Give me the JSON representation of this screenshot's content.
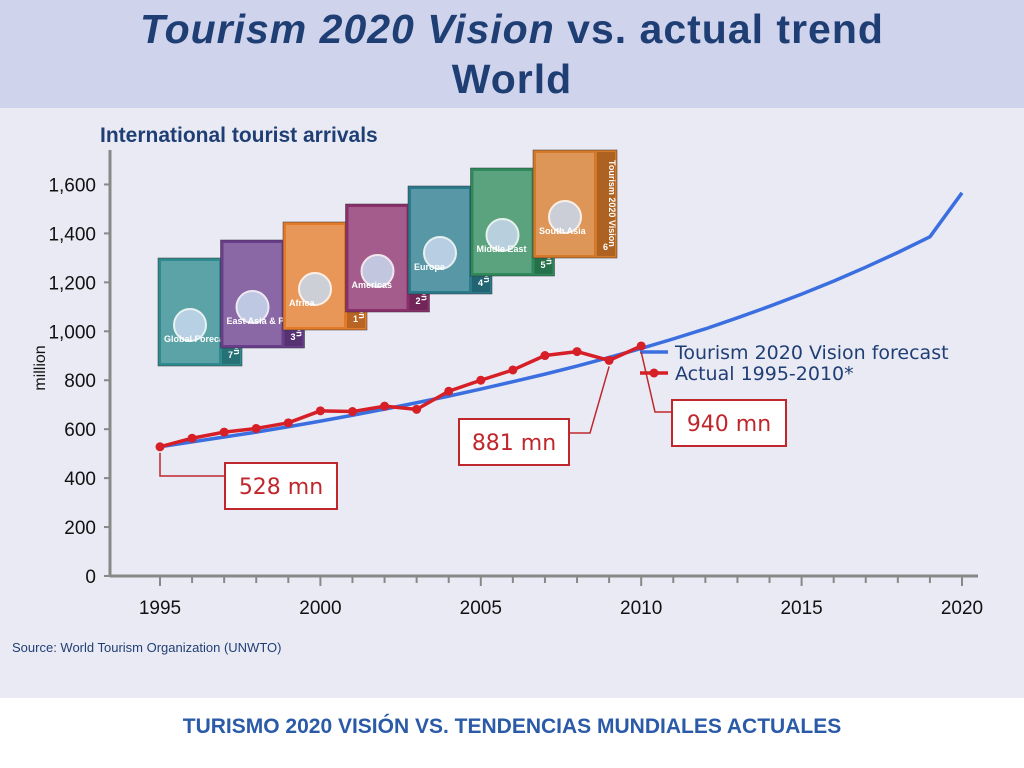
{
  "header": {
    "title_vision": "Tourism 2020 Vision",
    "title_rest": " vs. actual trend",
    "title_line2": "World"
  },
  "chart_title": "International tourist arrivals",
  "source": "Source: World Tourism Organization (UNWTO)",
  "footer": "TURISMO 2020 VISIÓN VS. TENDENCIAS MUNDIALES ACTUALES",
  "colors": {
    "forecast": "#3b6fe0",
    "actual": "#d61f26",
    "title": "#1f3f74",
    "callout": "#c0272d"
  },
  "covers": [
    {
      "label": "Global Forecasts",
      "number": "7",
      "color": "#2f8a8f"
    },
    {
      "label": "East Asia & Pacific",
      "number": "3",
      "color": "#6a3d8c"
    },
    {
      "label": "Africa",
      "number": "1",
      "color": "#e27a2a"
    },
    {
      "label": "Americas",
      "number": "2",
      "color": "#8a2f6b"
    },
    {
      "label": "Europe",
      "number": "4",
      "color": "#2a7a8c"
    },
    {
      "label": "Middle East",
      "number": "5",
      "color": "#2e8a5a"
    },
    {
      "label": "South Asia",
      "number": "6",
      "color": "#d4782a"
    }
  ],
  "cover_title": "Tourism 2020 Vision",
  "chart_data": {
    "type": "line",
    "title": "International tourist arrivals",
    "ylabel": "million",
    "xlim": [
      1995,
      2020
    ],
    "ylim": [
      0,
      1700
    ],
    "xticks": [
      1995,
      2000,
      2005,
      2010,
      2015,
      2020
    ],
    "yticks": [
      0,
      200,
      400,
      600,
      800,
      1000,
      1200,
      1400,
      1600
    ],
    "ytick_labels": [
      "0",
      "200",
      "400",
      "600",
      "800",
      "1,000",
      "1,200",
      "1,400",
      "1,600"
    ],
    "legend_position": "right",
    "series": [
      {
        "name": "Tourism 2020 Vision forecast",
        "x": [
          1995,
          1996,
          1997,
          1998,
          1999,
          2000,
          2001,
          2002,
          2003,
          2004,
          2005,
          2006,
          2007,
          2008,
          2009,
          2010,
          2011,
          2012,
          2013,
          2014,
          2015,
          2016,
          2017,
          2018,
          2019,
          2020
        ],
        "y": [
          528,
          548,
          568,
          588,
          610,
          633,
          657,
          682,
          708,
          735,
          764,
          794,
          825,
          858,
          893,
          930,
          969,
          1010,
          1055,
          1102,
          1152,
          1205,
          1262,
          1322,
          1386,
          1566
        ]
      },
      {
        "name": "Actual 1995-2010*",
        "x": [
          1995,
          1996,
          1997,
          1998,
          1999,
          2000,
          2001,
          2002,
          2003,
          2004,
          2005,
          2006,
          2007,
          2008,
          2009,
          2010
        ],
        "y": [
          528,
          563,
          588,
          603,
          626,
          675,
          672,
          694,
          681,
          755,
          800,
          842,
          901,
          917,
          881,
          940
        ]
      }
    ],
    "annotations": [
      {
        "text": "528 mn",
        "x": 1995,
        "y": 528
      },
      {
        "text": "881 mn",
        "x": 2009,
        "y": 881
      },
      {
        "text": "940 mn",
        "x": 2010,
        "y": 940
      }
    ]
  }
}
